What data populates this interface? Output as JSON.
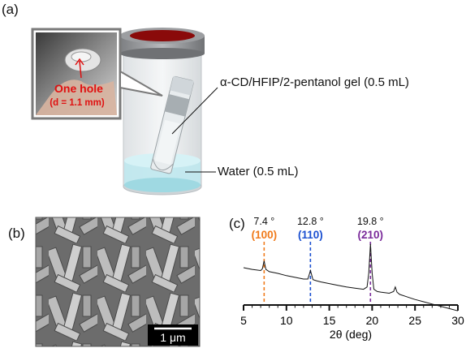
{
  "panels": {
    "a": {
      "label": "(a)"
    },
    "b": {
      "label": "(b)"
    },
    "c": {
      "label": "(c)"
    }
  },
  "panel_a": {
    "inset_text_line1": "One hole",
    "inset_text_line2": "(d = 1.1 mm)",
    "gel_label": "α-CD/HFIP/2-pentanol gel (0.5 mL)",
    "water_label": "Water (0.5 mL)"
  },
  "panel_b": {
    "scale_bar_label": "1 μm"
  },
  "colors": {
    "cap": "#8a0a0a",
    "inset_text": "#e01010",
    "peak_100": "#f07a1a",
    "peak_110": "#1a4fd0",
    "peak_210": "#7a2a9a",
    "water": "#bfe8ee"
  },
  "chart_data": {
    "type": "line",
    "xlabel": "2θ (deg)",
    "ylabel": "",
    "xlim": [
      5,
      30
    ],
    "xticks": [
      5,
      10,
      15,
      20,
      25,
      30
    ],
    "grid": false,
    "series": [
      {
        "x": [
          5.0,
          6.0,
          7.0,
          7.2,
          7.4,
          7.6,
          8.0,
          9.0,
          10.0,
          11.0,
          12.0,
          12.5,
          12.8,
          13.1,
          13.5,
          14.0,
          15.0,
          16.0,
          17.0,
          18.0,
          19.0,
          19.4,
          19.6,
          19.8,
          20.0,
          20.2,
          20.6,
          21.0,
          22.0,
          22.5,
          22.7,
          22.9,
          23.2,
          24.0,
          25.0,
          26.0,
          27.0,
          28.0,
          29.0,
          30.0
        ],
        "y": [
          1.0,
          0.97,
          0.95,
          0.98,
          1.12,
          0.97,
          0.93,
          0.9,
          0.86,
          0.83,
          0.8,
          0.8,
          0.95,
          0.79,
          0.77,
          0.75,
          0.72,
          0.69,
          0.66,
          0.64,
          0.62,
          0.66,
          0.9,
          1.42,
          0.9,
          0.62,
          0.58,
          0.57,
          0.55,
          0.58,
          0.66,
          0.57,
          0.53,
          0.49,
          0.44,
          0.4,
          0.36,
          0.32,
          0.28,
          0.24
        ]
      }
    ],
    "peaks": [
      {
        "x": 7.4,
        "angle_label": "7.4 °",
        "index_label": "(100)"
      },
      {
        "x": 12.8,
        "angle_label": "12.8 °",
        "index_label": "(110)"
      },
      {
        "x": 19.8,
        "angle_label": "19.8 °",
        "index_label": "(210)"
      }
    ]
  }
}
